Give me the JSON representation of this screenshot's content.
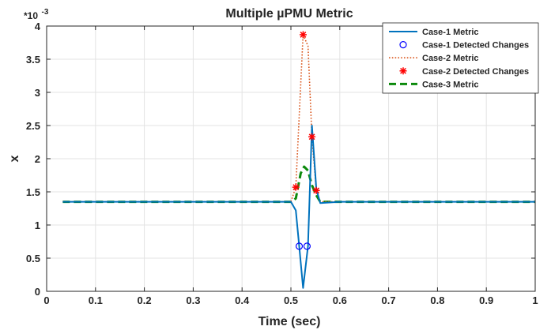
{
  "chart_data": {
    "type": "line",
    "title": "Multiple µPMU Metric",
    "xlabel": "Time (sec)",
    "ylabel": "x",
    "y_exponent_label": "*10",
    "y_exponent_power": "-3",
    "xlim": [
      0,
      1
    ],
    "ylim": [
      0,
      4
    ],
    "x_ticks": [
      "0",
      "0.1",
      "0.2",
      "0.3",
      "0.4",
      "0.5",
      "0.6",
      "0.7",
      "0.8",
      "0.9",
      "1"
    ],
    "y_ticks": [
      "0",
      "0.5",
      "1",
      "1.5",
      "2",
      "2.5",
      "3",
      "3.5",
      "4"
    ],
    "grid": true,
    "legend_position": "top-right",
    "series": [
      {
        "name": "Case-1 Metric",
        "style": "line-solid",
        "color": "#0072BD",
        "x": [
          0.033,
          0.1,
          0.2,
          0.3,
          0.4,
          0.5,
          0.51,
          0.517,
          0.525,
          0.535,
          0.543,
          0.552,
          0.56,
          0.6,
          0.7,
          0.8,
          0.9,
          1.0
        ],
        "y": [
          1.35,
          1.35,
          1.35,
          1.35,
          1.35,
          1.35,
          1.22,
          0.68,
          0.05,
          0.68,
          2.5,
          1.55,
          1.33,
          1.35,
          1.35,
          1.35,
          1.35,
          1.35
        ]
      },
      {
        "name": "Case-1 Detected Changes",
        "style": "marker-circle",
        "color": "#0000FF",
        "x": [
          0.517,
          0.533
        ],
        "y": [
          0.68,
          0.68
        ]
      },
      {
        "name": "Case-2 Metric",
        "style": "line-dotted",
        "color": "#D95319",
        "x": [
          0.033,
          0.1,
          0.2,
          0.3,
          0.4,
          0.5,
          0.51,
          0.525,
          0.535,
          0.543,
          0.552,
          0.56,
          0.6,
          0.7,
          0.8,
          0.9,
          1.0
        ],
        "y": [
          1.35,
          1.35,
          1.35,
          1.35,
          1.35,
          1.35,
          1.57,
          3.87,
          3.7,
          2.33,
          1.52,
          1.35,
          1.35,
          1.35,
          1.35,
          1.35,
          1.35
        ]
      },
      {
        "name": "Case-2 Detected Changes",
        "style": "marker-star",
        "color": "#FF0000",
        "x": [
          0.51,
          0.525,
          0.543,
          0.552
        ],
        "y": [
          1.57,
          3.87,
          2.33,
          1.52
        ]
      },
      {
        "name": "Case-3 Metric",
        "style": "line-dashed",
        "color": "#0C8A0C",
        "x": [
          0.033,
          0.1,
          0.2,
          0.3,
          0.4,
          0.5,
          0.51,
          0.52,
          0.527,
          0.535,
          0.543,
          0.552,
          0.56,
          0.6,
          0.7,
          0.8,
          0.9,
          1.0
        ],
        "y": [
          1.35,
          1.35,
          1.35,
          1.35,
          1.35,
          1.35,
          1.4,
          1.78,
          1.88,
          1.82,
          1.6,
          1.45,
          1.35,
          1.35,
          1.35,
          1.35,
          1.35,
          1.35
        ]
      }
    ]
  }
}
